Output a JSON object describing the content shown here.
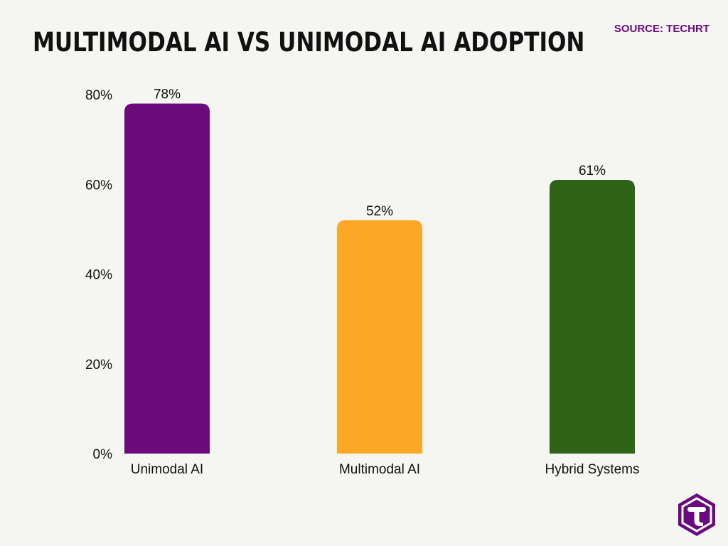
{
  "header": {
    "title": "MULTIMODAL AI VS UNIMODAL AI ADOPTION",
    "source": "SOURCE: TECHRT"
  },
  "logo": {
    "icon": "techrt-logo-icon",
    "color": "#6a0a80"
  },
  "chart_data": {
    "type": "bar",
    "categories": [
      "Unimodal AI",
      "Multimodal AI",
      "Hybrid Systems"
    ],
    "values": [
      78,
      52,
      61
    ],
    "value_labels": [
      "78%",
      "52%",
      "61%"
    ],
    "colors": [
      "#6a0a7d",
      "#fca726",
      "#2f6417"
    ],
    "y_ticks": [
      0,
      20,
      40,
      60,
      80
    ],
    "y_tick_labels": [
      "0%",
      "20%",
      "40%",
      "60%",
      "80%"
    ],
    "ylim": [
      0,
      80
    ],
    "grid": false,
    "legend": "none"
  }
}
